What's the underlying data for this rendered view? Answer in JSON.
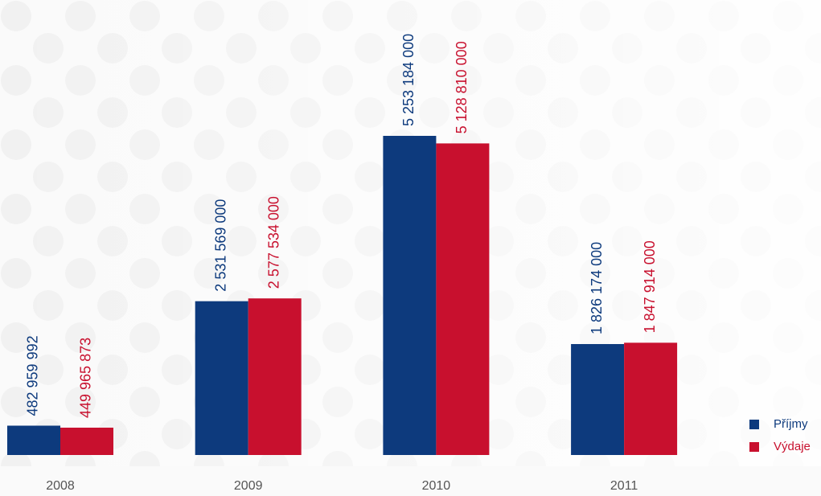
{
  "chart_data": {
    "type": "bar",
    "categories": [
      "2008",
      "2009",
      "2010",
      "2011"
    ],
    "series": [
      {
        "name": "Příjmy",
        "color": "#0d3a7d",
        "values": [
          482959992,
          2531569000,
          5253184000,
          1826174000
        ],
        "value_labels": [
          "482 959 992",
          "2 531 569 000",
          "5 253 184 000",
          "1 826 174 000"
        ]
      },
      {
        "name": "Výdaje",
        "color": "#c8102e",
        "values": [
          449965873,
          2577534000,
          5128810000,
          1847914000
        ],
        "value_labels": [
          "449 965 873",
          "2 577 534 000",
          "5 128 810 000",
          "1 847 914 000"
        ]
      }
    ],
    "legend": "bottom-right"
  }
}
